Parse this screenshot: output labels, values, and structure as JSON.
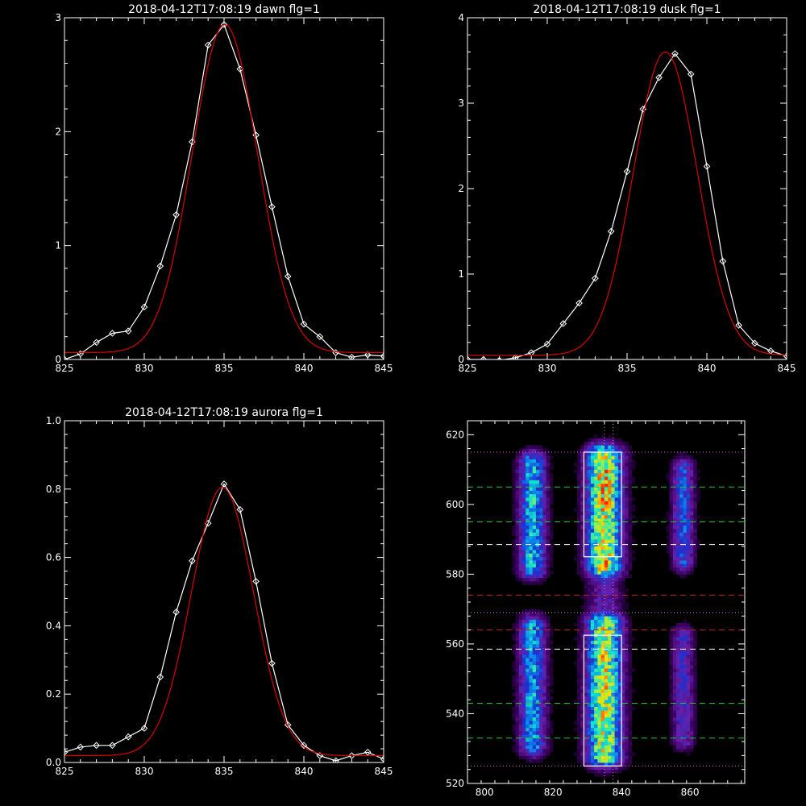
{
  "chart_data": [
    {
      "type": "line",
      "title": "2018-04-12T17:08:19 dawn flg=1",
      "xlim": [
        825,
        845
      ],
      "ylim": [
        0,
        3
      ],
      "x_ticks": [
        825,
        830,
        835,
        840,
        845
      ],
      "y_ticks": [
        0,
        1,
        2,
        3
      ],
      "series": [
        {
          "color": "#ffffff",
          "marker": "diamond",
          "x": [
            825,
            826,
            827,
            828,
            829,
            830,
            831,
            832,
            833,
            834,
            835,
            836,
            837,
            838,
            839,
            840,
            841,
            842,
            843,
            844,
            845
          ],
          "y": [
            0.0,
            0.05,
            0.15,
            0.23,
            0.25,
            0.46,
            0.82,
            1.27,
            1.91,
            2.76,
            2.94,
            2.55,
            1.97,
            1.34,
            0.73,
            0.31,
            0.2,
            0.06,
            0.02,
            0.04,
            0.03
          ]
        },
        {
          "color": "#dd0000",
          "model": "gaussian",
          "amplitude": 2.88,
          "center": 835.05,
          "sigma": 2.05,
          "offset": 0.06
        }
      ]
    },
    {
      "type": "line",
      "title": "2018-04-12T17:08:19 dusk flg=1",
      "xlim": [
        825,
        845
      ],
      "ylim": [
        0,
        4
      ],
      "x_ticks": [
        825,
        830,
        835,
        840,
        845
      ],
      "y_ticks": [
        0,
        1,
        2,
        3,
        4
      ],
      "series": [
        {
          "color": "#ffffff",
          "marker": "diamond",
          "x": [
            825,
            826,
            827,
            828,
            829,
            830,
            831,
            832,
            833,
            834,
            835,
            836,
            837,
            838,
            839,
            840,
            841,
            842,
            843,
            844,
            845
          ],
          "y": [
            0.0,
            0.0,
            -0.01,
            0.02,
            0.08,
            0.18,
            0.42,
            0.66,
            0.95,
            1.5,
            2.2,
            2.93,
            3.3,
            3.58,
            3.34,
            2.26,
            1.15,
            0.4,
            0.19,
            0.1,
            0.04
          ]
        },
        {
          "color": "#dd0000",
          "model": "gaussian",
          "amplitude": 3.55,
          "center": 837.4,
          "sigma": 2.0,
          "offset": 0.05
        }
      ]
    },
    {
      "type": "line",
      "title": "2018-04-12T17:08:19 aurora flg=1",
      "xlim": [
        825,
        845
      ],
      "ylim": [
        0,
        1
      ],
      "x_ticks": [
        825,
        830,
        835,
        840,
        845
      ],
      "y_ticks": [
        "0.0",
        "0.2",
        "0.4",
        "0.6",
        "0.8",
        "1.0"
      ],
      "series": [
        {
          "color": "#ffffff",
          "marker": "diamond",
          "x": [
            825,
            826,
            827,
            828,
            829,
            830,
            831,
            832,
            833,
            834,
            835,
            836,
            837,
            838,
            839,
            840,
            841,
            842,
            843,
            844,
            845
          ],
          "y": [
            0.03,
            0.045,
            0.05,
            0.05,
            0.075,
            0.1,
            0.25,
            0.44,
            0.59,
            0.7,
            0.815,
            0.74,
            0.53,
            0.29,
            0.11,
            0.05,
            0.02,
            0.005,
            0.02,
            0.03,
            0.01
          ]
        },
        {
          "color": "#dd0000",
          "model": "gaussian",
          "amplitude": 0.785,
          "center": 834.9,
          "sigma": 1.95,
          "offset": 0.02
        }
      ]
    },
    {
      "type": "heatmap",
      "xlim": [
        795,
        876
      ],
      "ylim": [
        520,
        624
      ],
      "x_ticks": [
        800,
        820,
        840,
        860
      ],
      "y_ticks": [
        520,
        540,
        560,
        580,
        600,
        620
      ],
      "colormap": [
        "#000000",
        "#3a0060",
        "#6a1fa8",
        "#1a30d0",
        "#0a8ff0",
        "#14e8c8",
        "#a0f040",
        "#f8e000",
        "#ff2000"
      ],
      "emission_bands": [
        {
          "x_center": 814,
          "x_width": 6,
          "y_ranges": [
            [
              582,
              612,
              0.62
            ],
            [
              531,
              565,
              0.58
            ]
          ]
        },
        {
          "x_center": 835,
          "x_width": 8,
          "y_ranges": [
            [
              582,
              614,
              0.92
            ],
            [
              528,
              566,
              0.86
            ],
            [
              566,
              582,
              0.3
            ]
          ]
        },
        {
          "x_center": 858,
          "x_width": 5,
          "y_ranges": [
            [
              584,
              610,
              0.45
            ],
            [
              533,
              562,
              0.35
            ]
          ]
        }
      ],
      "boxes": [
        {
          "x": [
            829,
            840
          ],
          "y": [
            585,
            615
          ],
          "color": "#ffffff"
        },
        {
          "x": [
            829,
            840
          ],
          "y": [
            525,
            562.5
          ],
          "color": "#ffffff"
        }
      ],
      "hlines": [
        {
          "y": 615,
          "color": "#e070e0",
          "style": "dotted"
        },
        {
          "y": 605,
          "color": "#22cc22",
          "style": "dashed"
        },
        {
          "y": 595,
          "color": "#22cc22",
          "style": "dashed"
        },
        {
          "y": 588.5,
          "color": "#ffffff",
          "style": "dashed"
        },
        {
          "y": 574,
          "color": "#cc2222",
          "style": "dashed"
        },
        {
          "y": 569,
          "color": "#e070e0",
          "style": "dotted"
        },
        {
          "y": 564,
          "color": "#cc2222",
          "style": "dashed"
        },
        {
          "y": 558.5,
          "color": "#ffffff",
          "style": "dashed"
        },
        {
          "y": 543,
          "color": "#22cc22",
          "style": "dashed"
        },
        {
          "y": 533,
          "color": "#22cc22",
          "style": "dashed"
        },
        {
          "y": 525,
          "color": "#e070e0",
          "style": "dotted"
        }
      ],
      "vlines": [
        {
          "x": 835,
          "color": "#e070e0",
          "style": "dotted"
        },
        {
          "x": 837.5,
          "color": "#e070e0",
          "style": "dotted"
        }
      ]
    }
  ]
}
